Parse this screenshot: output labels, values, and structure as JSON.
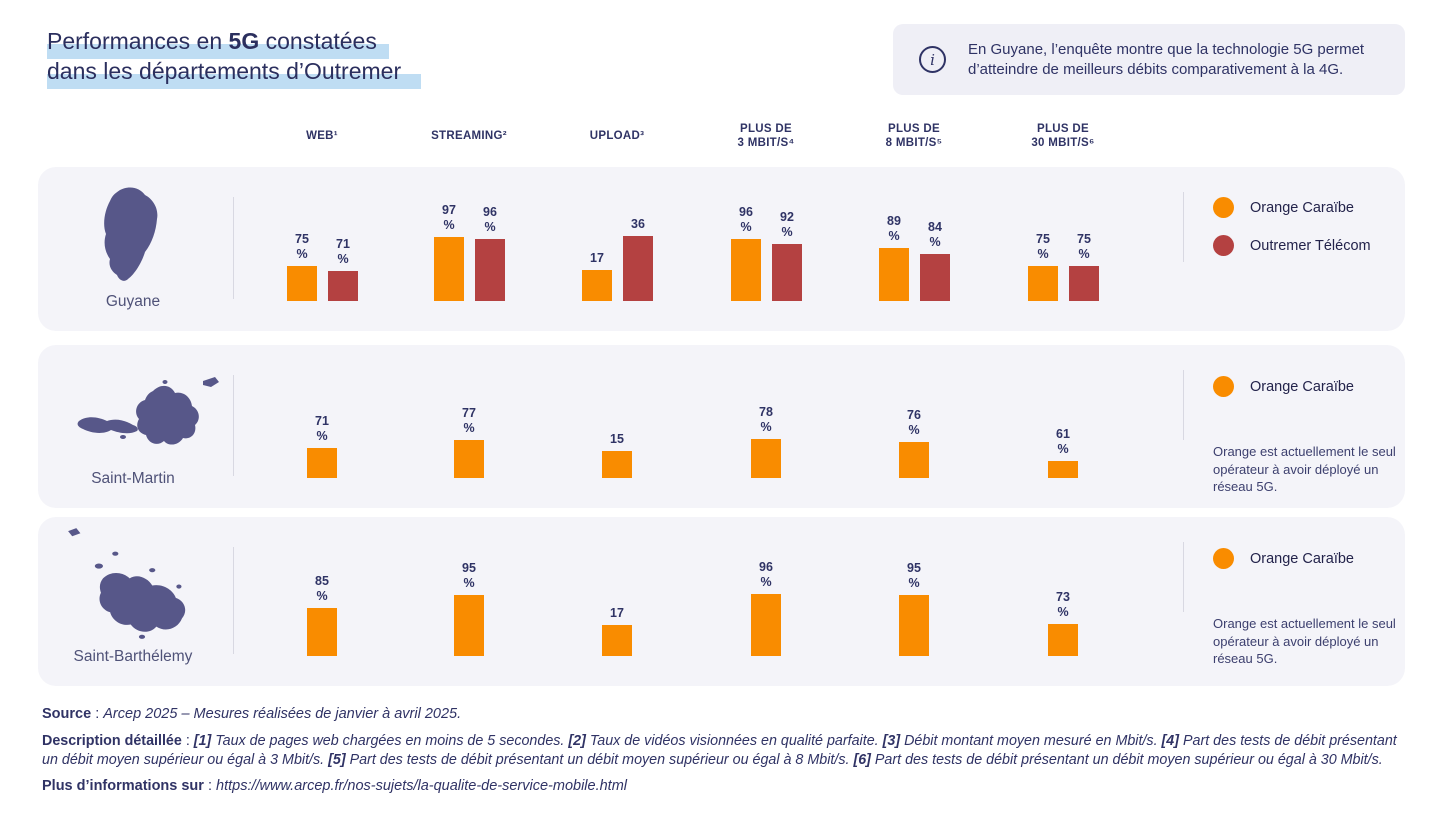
{
  "title": {
    "line1_pre": "Performances en ",
    "line1_strong": "5G",
    "line1_post": " constatées",
    "line2": "dans les départements d’Outremer"
  },
  "info_box": {
    "icon": "info-icon",
    "text": "En Guyane, l’enquête montre que la technologie 5G permet d’atteindre de meilleurs débits comparativement à la 4G."
  },
  "colors": {
    "orange_caraibe": "#F98C00",
    "outremer_telecom": "#B44141",
    "panel_background": "#F4F4F9",
    "map_purple": "#575789",
    "navy_text": "#2F3365",
    "title_highlight": "#BFDDF3"
  },
  "chart_data": {
    "type": "bar",
    "columns": [
      {
        "label_lines": [
          "WEB¹"
        ],
        "unit": "%"
      },
      {
        "label_lines": [
          "STREAMING²"
        ],
        "unit": "%"
      },
      {
        "label_lines": [
          "UPLOAD³"
        ],
        "unit": "Mbit/s"
      },
      {
        "label_lines": [
          "PLUS DE",
          "3 MBIT/S⁴"
        ],
        "unit": "%"
      },
      {
        "label_lines": [
          "PLUS DE",
          "8 MBIT/S⁵"
        ],
        "unit": "%"
      },
      {
        "label_lines": [
          "PLUS DE",
          "30 MBIT/S⁶"
        ],
        "unit": "%"
      }
    ],
    "rows": [
      {
        "region": "Guyane",
        "series": [
          {
            "name": "Orange Caraïbe",
            "color": "#F98C00",
            "values": [
              75,
              97,
              17,
              96,
              89,
              75
            ]
          },
          {
            "name": "Outremer Télécom",
            "color": "#B44141",
            "values": [
              71,
              96,
              36,
              92,
              84,
              75
            ]
          }
        ],
        "note": null
      },
      {
        "region": "Saint-Martin",
        "series": [
          {
            "name": "Orange Caraïbe",
            "color": "#F98C00",
            "values": [
              71,
              77,
              15,
              78,
              76,
              61
            ]
          }
        ],
        "note": "Orange est actuellement le seul opérateur à avoir déployé un réseau 5G."
      },
      {
        "region": "Saint-Barthélemy",
        "series": [
          {
            "name": "Orange Caraïbe",
            "color": "#F98C00",
            "values": [
              85,
              95,
              17,
              96,
              95,
              73
            ]
          }
        ],
        "note": "Orange est actuellement le seul opérateur à avoir déployé un réseau 5G."
      }
    ],
    "legend_position": "right",
    "grid": false,
    "value_labels": true
  },
  "footer": {
    "source_label": "Source",
    "source_sep": " : ",
    "source_text": "Arcep 2025 – Mesures réalisées de janvier à avril 2025.",
    "description_label": "Description détaillée",
    "description_sep": " : ",
    "footnotes": [
      {
        "marker": "[1]",
        "text": "Taux de pages web chargées en moins de 5 secondes."
      },
      {
        "marker": "[2]",
        "text": "Taux de vidéos visionnées en qualité parfaite."
      },
      {
        "marker": "[3]",
        "text": "Débit montant moyen mesuré en Mbit/s."
      },
      {
        "marker": "[4]",
        "text": "Part des tests de débit présentant un débit moyen supérieur ou égal à 3 Mbit/s."
      },
      {
        "marker": "[5]",
        "text": "Part des tests de débit présentant un débit moyen supérieur ou égal à 8 Mbit/s."
      },
      {
        "marker": "[6]",
        "text": "Part des tests de débit présentant un débit moyen supérieur ou égal à 30 Mbit/s."
      }
    ],
    "more_info_label": "Plus d’informations sur",
    "more_info_sep": " : ",
    "more_info_url": "https://www.arcep.fr/nos-sujets/la-qualite-de-service-mobile.html"
  }
}
